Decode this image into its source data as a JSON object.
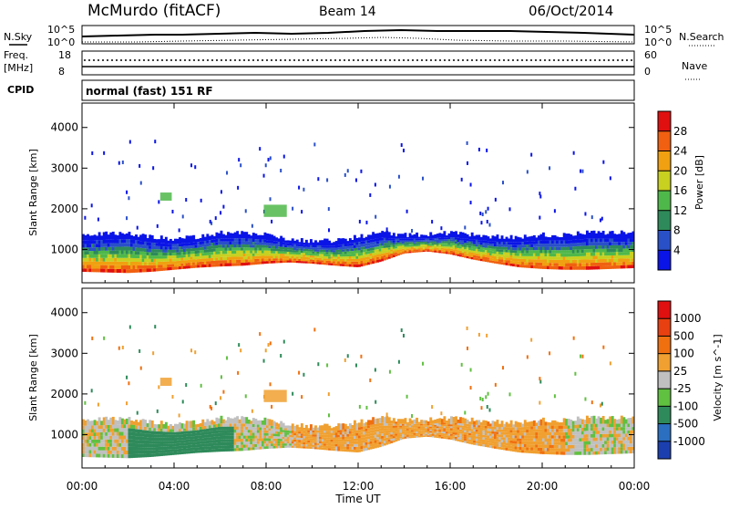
{
  "header": {
    "station": "McMurdo (fitACF)",
    "beam": "Beam 14",
    "date": "06/Oct/2014"
  },
  "top_panels": {
    "nsky_label": "N.Sky",
    "nsky_tick_top": "10^5",
    "nsky_tick_bottom": "10^0",
    "nsearch_label": "N.Search",
    "nsearch_tick_top": "10^5",
    "nsearch_tick_bottom": "10^0",
    "freq_label": "Freq.",
    "freq_unit": "[MHz]",
    "freq_ticks": [
      "18",
      "8"
    ],
    "nave_label": "Nave",
    "nave_ticks": [
      "60",
      "0"
    ],
    "cpid_label": "CPID",
    "cpid_value": "normal (fast) 151 RF"
  },
  "colors": {
    "power_scale": [
      "#0a14e6",
      "#2a50c8",
      "#2e8a5a",
      "#4fb84a",
      "#c8d020",
      "#f0a010",
      "#f06010",
      "#e01010"
    ],
    "velocity_scale": [
      "#1c3fb0",
      "#2a6fc0",
      "#2e8a5a",
      "#60c040",
      "#c0c0c0",
      "#f0a030",
      "#f07010",
      "#e84010",
      "#e01010"
    ],
    "axis": "#000000"
  },
  "chart_data": [
    {
      "type": "heatmap",
      "title": "",
      "xlabel": "Time UT",
      "ylabel": "Slant Range [km]",
      "x_ticks": [
        "00:00",
        "04:00",
        "08:00",
        "12:00",
        "16:00",
        "20:00",
        "00:00"
      ],
      "x_range_hours": [
        0,
        24
      ],
      "y_ticks": [
        1000,
        2000,
        3000,
        4000
      ],
      "ylim": [
        180,
        4600
      ],
      "colorbar_label": "Power [dB]",
      "colorbar_ticks": [
        "4",
        "8",
        "12",
        "16",
        "20",
        "24",
        "28"
      ],
      "colorbar_range": [
        0,
        32
      ],
      "main_band": {
        "hours": [
          0,
          2,
          3,
          4,
          5,
          6,
          7,
          8,
          9,
          10,
          11,
          12,
          13,
          14,
          15,
          16,
          17,
          18,
          19,
          20,
          21,
          22,
          23,
          24
        ],
        "lower_km": [
          450,
          420,
          450,
          500,
          550,
          580,
          600,
          650,
          680,
          650,
          600,
          560,
          700,
          900,
          950,
          880,
          750,
          650,
          560,
          520,
          500,
          500,
          520,
          540
        ],
        "upper_km": [
          1300,
          1350,
          1250,
          1200,
          1250,
          1350,
          1350,
          1300,
          1200,
          1150,
          1150,
          1250,
          1350,
          1300,
          1300,
          1350,
          1300,
          1250,
          1250,
          1300,
          1300,
          1350,
          1350,
          1350
        ]
      }
    },
    {
      "type": "heatmap",
      "title": "",
      "xlabel": "Time UT",
      "ylabel": "Slant Range [km]",
      "x_ticks": [
        "00:00",
        "04:00",
        "08:00",
        "12:00",
        "16:00",
        "20:00",
        "00:00"
      ],
      "x_range_hours": [
        0,
        24
      ],
      "y_ticks": [
        1000,
        2000,
        3000,
        4000
      ],
      "ylim": [
        180,
        4600
      ],
      "colorbar_label": "Velocity [m s^-1]",
      "colorbar_ticks": [
        "1000",
        "500",
        "100",
        "25",
        "-25",
        "-100",
        "-500",
        "-1000"
      ],
      "colorbar_range": [
        -1000,
        1000
      ]
    }
  ]
}
